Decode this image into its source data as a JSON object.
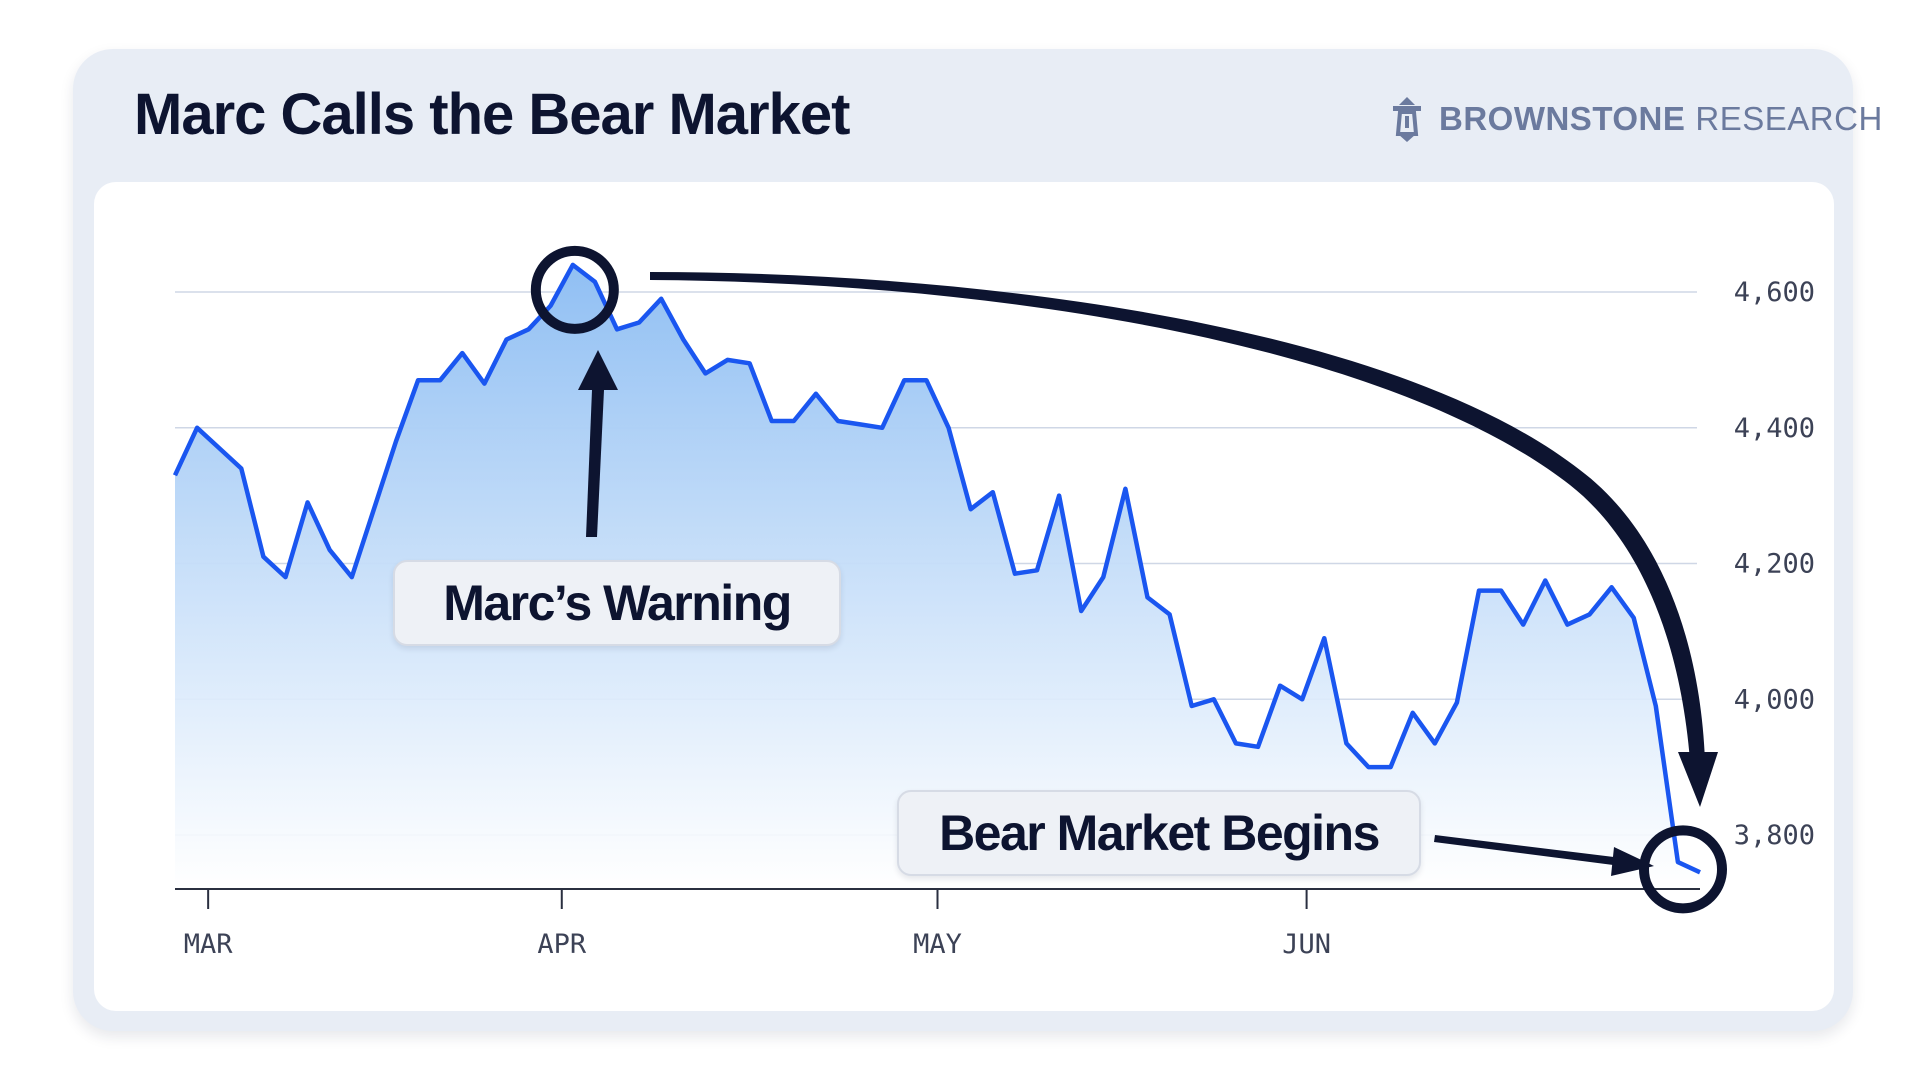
{
  "header": {
    "title": "Marc Calls the Bear Market",
    "brand_bold": "BROWNSTONE",
    "brand_light": "RESEARCH",
    "brand_icon": "lighthouse-icon"
  },
  "colors": {
    "line": "#1a56f0",
    "fill_top": "#90bff3",
    "fill_bottom": "#ffffff",
    "grid": "#cfd7e6",
    "annotation": "#0d1430"
  },
  "chart_data": {
    "type": "area",
    "title": "Marc Calls the Bear Market",
    "xlabel": "",
    "ylabel": "",
    "x_ticks": [
      "MAR",
      "APR",
      "MAY",
      "JUN"
    ],
    "y_ticks": [
      3800,
      4000,
      4200,
      4400,
      4600
    ],
    "ylim": [
      3720,
      4700
    ],
    "grid": "horizontal",
    "series": [
      {
        "values": [
          4330,
          4400,
          4370,
          4340,
          4210,
          4180,
          4290,
          4220,
          4180,
          4280,
          4380,
          4470,
          4470,
          4510,
          4465,
          4530,
          4545,
          4580,
          4640,
          4615,
          4545,
          4555,
          4590,
          4530,
          4480,
          4500,
          4495,
          4410,
          4410,
          4450,
          4410,
          4405,
          4400,
          4470,
          4470,
          4400,
          4280,
          4305,
          4185,
          4190,
          4300,
          4130,
          4180,
          4310,
          4150,
          4125,
          3990,
          4000,
          3935,
          3930,
          4020,
          4000,
          4090,
          3935,
          3900,
          3900,
          3980,
          3935,
          3995,
          4160,
          4160,
          4110,
          4175,
          4110,
          4125,
          4165,
          4120,
          3990,
          3760,
          3745
        ]
      }
    ],
    "annotations": [
      {
        "label": "Marc’s Warning",
        "target": "peak"
      },
      {
        "label": "Bear Market Begins",
        "target": "last"
      }
    ]
  }
}
